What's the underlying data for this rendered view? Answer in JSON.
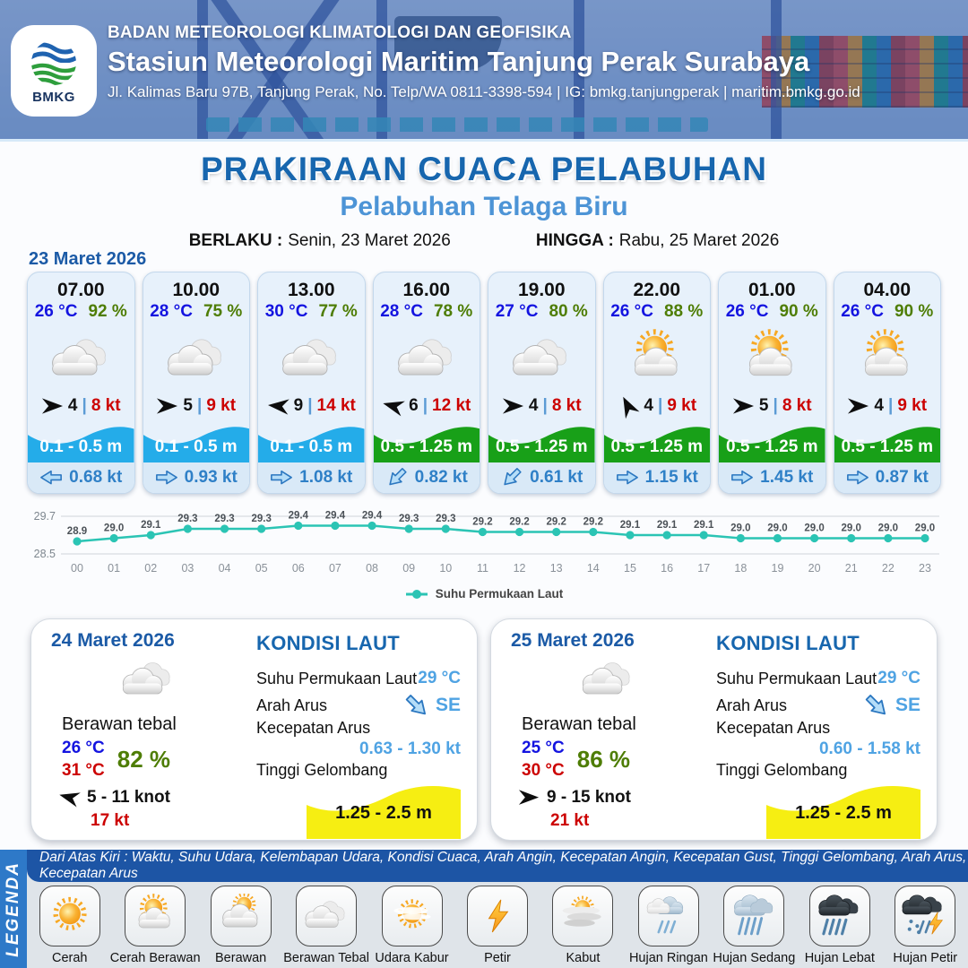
{
  "header": {
    "agency": "BADAN METEOROLOGI KLIMATOLOGI DAN GEOFISIKA",
    "station": "Stasiun Meteorologi Maritim Tanjung Perak Surabaya",
    "address": "Jl. Kalimas Baru 97B, Tanjung Perak, No. Telp/WA 0811-3398-594 | IG: bmkg.tanjungperak | maritim.bmkg.go.id",
    "logo_text": "BMKG"
  },
  "title": {
    "main": "PRAKIRAAN CUACA PELABUHAN",
    "subtitle": "Pelabuhan Telaga Biru",
    "berlaku_label": "BERLAKU :",
    "berlaku_value": "Senin, 23 Maret 2026",
    "hingga_label": "HINGGA :",
    "hingga_value": "Rabu, 25 Maret 2026"
  },
  "forecast": {
    "date": "23 Maret 2026",
    "sep": "|",
    "cards": [
      {
        "time": "07.00",
        "temp": "26 °C",
        "humidity": "92 %",
        "icon": "berawan-tebal",
        "wind_dir_deg": 0,
        "wind_speed": "4",
        "gust": "8 kt",
        "wave_range": "0.1 - 0.5 m",
        "wave_color": "blue",
        "current_dir_deg": 180,
        "current_speed": "0.68 kt"
      },
      {
        "time": "10.00",
        "temp": "28 °C",
        "humidity": "75 %",
        "icon": "berawan-tebal",
        "wind_dir_deg": 0,
        "wind_speed": "5",
        "gust": "9 kt",
        "wave_range": "0.1 - 0.5 m",
        "wave_color": "blue",
        "current_dir_deg": 0,
        "current_speed": "0.93 kt"
      },
      {
        "time": "13.00",
        "temp": "30 °C",
        "humidity": "77 %",
        "icon": "berawan-tebal",
        "wind_dir_deg": 185,
        "wind_speed": "9",
        "gust": "14 kt",
        "wave_range": "0.1 - 0.5 m",
        "wave_color": "blue",
        "current_dir_deg": 0,
        "current_speed": "1.08 kt"
      },
      {
        "time": "16.00",
        "temp": "28 °C",
        "humidity": "78 %",
        "icon": "berawan-tebal",
        "wind_dir_deg": 195,
        "wind_speed": "6",
        "gust": "12 kt",
        "wave_range": "0.5 - 1.25 m",
        "wave_color": "green",
        "current_dir_deg": 135,
        "current_speed": "0.82 kt"
      },
      {
        "time": "19.00",
        "temp": "27 °C",
        "humidity": "80 %",
        "icon": "berawan-tebal",
        "wind_dir_deg": 0,
        "wind_speed": "4",
        "gust": "8 kt",
        "wave_range": "0.5 - 1.25 m",
        "wave_color": "green",
        "current_dir_deg": 135,
        "current_speed": "0.61 kt"
      },
      {
        "time": "22.00",
        "temp": "26 °C",
        "humidity": "88 %",
        "icon": "cerah-berawan",
        "wind_dir_deg": 243,
        "wind_speed": "4",
        "gust": "9 kt",
        "wave_range": "0.5 - 1.25 m",
        "wave_color": "green",
        "current_dir_deg": 0,
        "current_speed": "1.15 kt"
      },
      {
        "time": "01.00",
        "temp": "26 °C",
        "humidity": "90 %",
        "icon": "cerah-berawan",
        "wind_dir_deg": 0,
        "wind_speed": "5",
        "gust": "8 kt",
        "wave_range": "0.5 - 1.25 m",
        "wave_color": "green",
        "current_dir_deg": 0,
        "current_speed": "1.45 kt"
      },
      {
        "time": "04.00",
        "temp": "26 °C",
        "humidity": "90 %",
        "icon": "cerah-berawan",
        "wind_dir_deg": 0,
        "wind_speed": "4",
        "gust": "9 kt",
        "wave_range": "0.5 - 1.25 m",
        "wave_color": "green",
        "current_dir_deg": 0,
        "current_speed": "0.87 kt"
      }
    ]
  },
  "chart_data": {
    "type": "line",
    "title": "",
    "x": [
      "00",
      "01",
      "02",
      "03",
      "04",
      "05",
      "06",
      "07",
      "08",
      "09",
      "10",
      "11",
      "12",
      "13",
      "14",
      "15",
      "16",
      "17",
      "18",
      "19",
      "20",
      "21",
      "22",
      "23"
    ],
    "series": [
      {
        "name": "Suhu Permukaan Laut",
        "values": [
          28.9,
          29.0,
          29.1,
          29.3,
          29.3,
          29.3,
          29.4,
          29.4,
          29.4,
          29.3,
          29.3,
          29.2,
          29.2,
          29.2,
          29.2,
          29.1,
          29.1,
          29.1,
          29.0,
          29.0,
          29.0,
          29.0,
          29.0,
          29.0
        ]
      }
    ],
    "ylim": [
      28.5,
      29.7
    ],
    "yticks": [
      "28.5",
      "29.7"
    ],
    "grid": true,
    "legend_position": "bottom",
    "line_color": "#2BC4B4"
  },
  "daily": [
    {
      "date": "24 Maret 2026",
      "condition": "Berawan tebal",
      "icon": "berawan-tebal",
      "temp_min": "26 °C",
      "temp_max": "31 °C",
      "humidity": "82 %",
      "wind_dir_deg": 195,
      "wind_range": "5  - 11 knot",
      "gust": "17 kt",
      "sea": {
        "title": "KONDISI LAUT",
        "sst_label": "Suhu Permukaan Laut",
        "sst": "29 °C",
        "current_dir_label": "Arah Arus",
        "current_dir": "SE",
        "current_dir_deg": 45,
        "current_speed_label": "Kecepatan Arus",
        "current_speed": "0.63  - 1.30 kt",
        "wave_label": "Tinggi Gelombang",
        "wave": "1.25 - 2.5 m"
      }
    },
    {
      "date": "25 Maret 2026",
      "condition": "Berawan tebal",
      "icon": "berawan-tebal",
      "temp_min": "25 °C",
      "temp_max": "30 °C",
      "humidity": "86 %",
      "wind_dir_deg": 0,
      "wind_range": "9  - 15 knot",
      "gust": "21 kt",
      "sea": {
        "title": "KONDISI LAUT",
        "sst_label": "Suhu Permukaan Laut",
        "sst": "29 °C",
        "current_dir_label": "Arah Arus",
        "current_dir": "SE",
        "current_dir_deg": 45,
        "current_speed_label": "Kecepatan Arus",
        "current_speed": "0.60 - 1.58 kt",
        "wave_label": "Tinggi Gelombang",
        "wave": "1.25 - 2.5 m"
      }
    }
  ],
  "legend": {
    "ribbon": "LEGENDA",
    "description": "Dari Atas Kiri : Waktu, Suhu Udara, Kelembapan Udara, Kondisi Cuaca, Arah Angin, Kecepatan Angin, Kecepatan Gust, Tinggi Gelombang, Arah Arus, Kecepatan Arus",
    "items": [
      {
        "label": "Cerah",
        "icon": "cerah"
      },
      {
        "label": "Cerah Berawan",
        "icon": "cerah-berawan"
      },
      {
        "label": "Berawan",
        "icon": "berawan"
      },
      {
        "label": "Berawan Tebal",
        "icon": "berawan-tebal"
      },
      {
        "label": "Udara Kabur",
        "icon": "udara-kabur"
      },
      {
        "label": "Petir",
        "icon": "petir"
      },
      {
        "label": "Kabut",
        "icon": "kabut"
      },
      {
        "label": "Hujan Ringan",
        "icon": "hujan-ringan"
      },
      {
        "label": "Hujan Sedang",
        "icon": "hujan-sedang"
      },
      {
        "label": "Hujan Lebat",
        "icon": "hujan-lebat"
      },
      {
        "label": "Hujan Petir",
        "icon": "hujan-petir"
      }
    ]
  },
  "colors": {
    "title_blue": "#1766AE",
    "subtitle_blue": "#4D94D6",
    "date_blue": "#1B5AA6",
    "temp_blue": "#1414E0",
    "humidity_green": "#4E7D05",
    "gust_red": "#CC0000",
    "wave_blue": "#24ACE9",
    "wave_green": "#18A018",
    "current_blue": "#2B77C0",
    "sst_line": "#2BC4B4",
    "wave_yellow": "#F6EE12",
    "legend_strip": "#1D55A5",
    "legend_ribbon": "#2E79C8"
  }
}
